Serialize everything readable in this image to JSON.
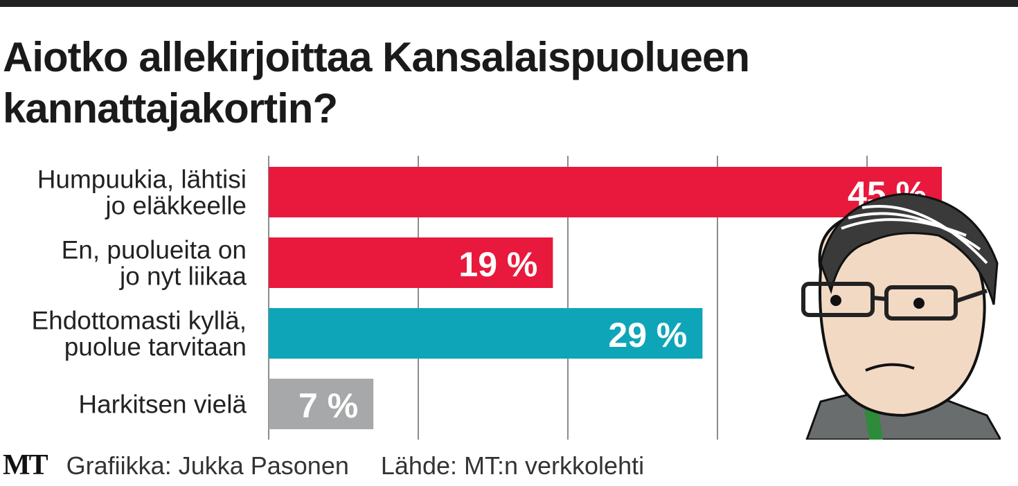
{
  "chart_data": {
    "type": "bar",
    "orientation": "horizontal",
    "title": "Aiotko allekirjoittaa Kansalaispuolueen kannattajakortin?",
    "title_lines": [
      "Aiotko allekirjoittaa Kansalaispuolueen",
      "kannattajakortin?"
    ],
    "categories": [
      [
        "Humpuukia, lähtisi",
        "jo eläkkeelle"
      ],
      [
        "En, puolueita on",
        "jo nyt liikaa"
      ],
      [
        "Ehdottomasti kyllä,",
        "puolue tarvitaan"
      ],
      [
        "Harkitsen vielä"
      ]
    ],
    "values": [
      45,
      19,
      29,
      7
    ],
    "value_labels": [
      "45 %",
      "19 %",
      "29 %",
      "7 %"
    ],
    "colors": [
      "#e8193c",
      "#e8193c",
      "#0fa5b9",
      "#a7a8aa"
    ],
    "xlim": [
      0,
      50
    ],
    "grid_step": 10,
    "grid": true,
    "unit": "%"
  },
  "footer": {
    "logo": "MT",
    "credit": "Grafiikka: Jukka Pasonen",
    "source": "Lähde: MT:n verkkolehti"
  }
}
